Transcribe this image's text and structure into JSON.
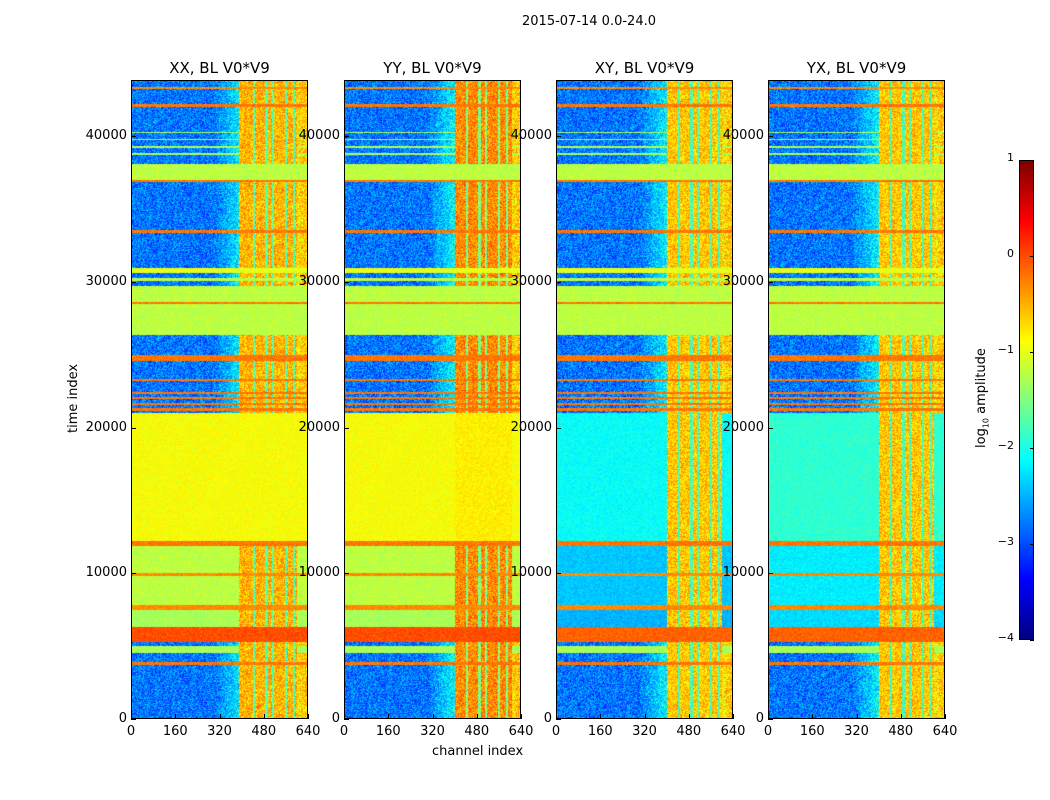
{
  "suptitle": "2015-07-14 0.0-24.0",
  "chart_data": [
    {
      "type": "heatmap",
      "title": "XX, BL V0*V9",
      "xlabel": "",
      "ylabel": "time index",
      "xlim": [
        0,
        640
      ],
      "ylim": [
        0,
        43850
      ],
      "xticks": [
        "0",
        "160",
        "320",
        "480",
        "640"
      ],
      "yticks": [
        "0",
        "10000",
        "20000",
        "30000",
        "40000"
      ],
      "base_low": -2.8,
      "hot_channels": [
        390,
        600
      ],
      "hot_value": -0.5,
      "bands": [
        [
          3700,
          3900,
          -0.2,
          -0.2
        ],
        [
          4500,
          5000,
          -1.3,
          null
        ],
        [
          5300,
          6300,
          0.0,
          0.0
        ],
        [
          6300,
          7500,
          -1.3,
          null
        ],
        [
          7500,
          7800,
          -0.3,
          -0.3
        ],
        [
          7800,
          12000,
          -1.2,
          null
        ],
        [
          9800,
          10000,
          -0.3,
          -0.3
        ],
        [
          11900,
          12200,
          -0.2,
          -0.2
        ],
        [
          12200,
          21000,
          -0.9,
          -0.9
        ],
        [
          21200,
          21350,
          -0.2,
          -0.2
        ],
        [
          21600,
          21750,
          -0.2,
          -0.2
        ],
        [
          22000,
          22150,
          -0.2,
          -0.2
        ],
        [
          22350,
          22500,
          -0.2,
          -0.2
        ],
        [
          23200,
          23400,
          -0.2,
          -0.2
        ],
        [
          24600,
          25000,
          -0.2,
          -0.2
        ],
        [
          26400,
          29800,
          -1.2,
          -1.2
        ],
        [
          28550,
          28650,
          -0.2,
          -0.2
        ],
        [
          30100,
          30300,
          -1.2,
          -1.2
        ],
        [
          30700,
          31000,
          -1.0,
          -1.0
        ],
        [
          33400,
          33600,
          -0.2,
          -0.2
        ],
        [
          36900,
          37100,
          -0.2,
          -0.2
        ],
        [
          37100,
          38200,
          -1.2,
          -1.2
        ],
        [
          38800,
          38900,
          -1.3,
          null
        ],
        [
          39300,
          39400,
          -1.3,
          null
        ],
        [
          39800,
          39900,
          -1.3,
          null
        ],
        [
          40300,
          40400,
          -1.3,
          null
        ],
        [
          42100,
          42300,
          -0.2,
          -0.2
        ],
        [
          43300,
          43450,
          -0.3,
          -0.3
        ]
      ]
    },
    {
      "type": "heatmap",
      "title": "YY, BL V0*V9",
      "xlabel": "channel index",
      "ylabel": "",
      "xlim": [
        0,
        640
      ],
      "ylim": [
        0,
        43850
      ],
      "xticks": [
        "0",
        "160",
        "320",
        "480",
        "640"
      ],
      "yticks": [
        "0",
        "10000",
        "20000",
        "30000",
        "40000"
      ],
      "base_low": -2.8,
      "hot_channels": [
        400,
        610
      ],
      "hot_value": -0.3,
      "bands": [
        [
          3700,
          3900,
          -0.2,
          -0.2
        ],
        [
          4500,
          5000,
          -1.3,
          null
        ],
        [
          5300,
          6300,
          0.0,
          0.0
        ],
        [
          6300,
          7500,
          -1.3,
          null
        ],
        [
          7500,
          7800,
          -0.3,
          -0.3
        ],
        [
          7800,
          12000,
          -1.2,
          null
        ],
        [
          9800,
          10000,
          -0.3,
          -0.3
        ],
        [
          11900,
          12200,
          -0.2,
          -0.2
        ],
        [
          12200,
          21000,
          -0.9,
          -0.8
        ],
        [
          21200,
          21350,
          -0.2,
          -0.2
        ],
        [
          21600,
          21750,
          -0.2,
          -0.2
        ],
        [
          22000,
          22150,
          -0.2,
          -0.2
        ],
        [
          22350,
          22500,
          -0.2,
          -0.2
        ],
        [
          23200,
          23400,
          -0.2,
          -0.2
        ],
        [
          24600,
          25000,
          -0.2,
          -0.2
        ],
        [
          26400,
          29800,
          -1.2,
          -1.2
        ],
        [
          28550,
          28650,
          -0.2,
          -0.2
        ],
        [
          30100,
          30300,
          -1.2,
          -1.2
        ],
        [
          30700,
          31000,
          -1.0,
          -1.0
        ],
        [
          33400,
          33600,
          -0.2,
          -0.2
        ],
        [
          36900,
          37100,
          -0.2,
          -0.2
        ],
        [
          37100,
          38200,
          -1.2,
          -1.2
        ],
        [
          38800,
          38900,
          -1.3,
          null
        ],
        [
          39300,
          39400,
          -1.3,
          null
        ],
        [
          39800,
          39900,
          -1.3,
          null
        ],
        [
          40300,
          40400,
          -1.3,
          null
        ],
        [
          42100,
          42300,
          -0.2,
          -0.2
        ],
        [
          43300,
          43450,
          -0.3,
          -0.3
        ]
      ]
    },
    {
      "type": "heatmap",
      "title": "XY, BL V0*V9",
      "xlabel": "",
      "ylabel": "",
      "xlim": [
        0,
        640
      ],
      "ylim": [
        0,
        43850
      ],
      "xticks": [
        "0",
        "160",
        "320",
        "480",
        "640"
      ],
      "yticks": [
        "0",
        "10000",
        "20000",
        "30000",
        "40000"
      ],
      "base_low": -2.8,
      "hot_channels": [
        400,
        600
      ],
      "hot_value": -0.6,
      "bands": [
        [
          3700,
          3900,
          -0.2,
          -0.2
        ],
        [
          4500,
          5000,
          -1.3,
          null
        ],
        [
          5300,
          6300,
          -0.1,
          -0.1
        ],
        [
          6300,
          7500,
          -2.5,
          null
        ],
        [
          7500,
          7800,
          -0.3,
          -0.3
        ],
        [
          7800,
          12000,
          -2.4,
          null
        ],
        [
          9800,
          10000,
          -0.3,
          -0.3
        ],
        [
          11900,
          12200,
          -0.2,
          -0.2
        ],
        [
          12200,
          21000,
          -2.1,
          null
        ],
        [
          21200,
          21350,
          -0.2,
          -0.2
        ],
        [
          21600,
          21750,
          -0.2,
          -0.2
        ],
        [
          22000,
          22150,
          -0.2,
          -0.2
        ],
        [
          22350,
          22500,
          -0.2,
          -0.2
        ],
        [
          23200,
          23400,
          -0.2,
          -0.2
        ],
        [
          24600,
          25000,
          -0.2,
          -0.2
        ],
        [
          26400,
          29800,
          -1.2,
          -1.2
        ],
        [
          28550,
          28650,
          -0.2,
          -0.2
        ],
        [
          30100,
          30300,
          -1.2,
          -1.2
        ],
        [
          30700,
          31000,
          -1.0,
          -1.0
        ],
        [
          33400,
          33600,
          -0.2,
          -0.2
        ],
        [
          36900,
          37100,
          -0.2,
          -0.2
        ],
        [
          37100,
          38200,
          -1.2,
          -1.2
        ],
        [
          38800,
          38900,
          -1.3,
          null
        ],
        [
          39300,
          39400,
          -1.3,
          null
        ],
        [
          39800,
          39900,
          -1.3,
          null
        ],
        [
          40300,
          40400,
          -1.3,
          null
        ],
        [
          42100,
          42300,
          -0.2,
          -0.2
        ],
        [
          43300,
          43450,
          -0.3,
          -0.3
        ]
      ]
    },
    {
      "type": "heatmap",
      "title": "YX, BL V0*V9",
      "xlabel": "",
      "ylabel": "",
      "xlim": [
        0,
        640
      ],
      "ylim": [
        0,
        43850
      ],
      "xticks": [
        "0",
        "160",
        "320",
        "480",
        "640"
      ],
      "yticks": [
        "0",
        "10000",
        "20000",
        "30000",
        "40000"
      ],
      "base_low": -2.8,
      "hot_channels": [
        400,
        600
      ],
      "hot_value": -0.6,
      "bands": [
        [
          3700,
          3900,
          -0.2,
          -0.2
        ],
        [
          4500,
          5000,
          -1.3,
          null
        ],
        [
          5300,
          6300,
          -0.1,
          -0.1
        ],
        [
          6300,
          7500,
          -2.3,
          null
        ],
        [
          7500,
          7800,
          -0.3,
          -0.3
        ],
        [
          7800,
          12000,
          -2.2,
          null
        ],
        [
          9800,
          10000,
          -0.3,
          -0.3
        ],
        [
          11900,
          12200,
          -0.2,
          -0.2
        ],
        [
          12200,
          21000,
          -1.9,
          null
        ],
        [
          21200,
          21350,
          -0.2,
          -0.2
        ],
        [
          21600,
          21750,
          -0.2,
          -0.2
        ],
        [
          22000,
          22150,
          -0.2,
          -0.2
        ],
        [
          22350,
          22500,
          -0.2,
          -0.2
        ],
        [
          23200,
          23400,
          -0.2,
          -0.2
        ],
        [
          24600,
          25000,
          -0.2,
          -0.2
        ],
        [
          26400,
          29800,
          -1.2,
          -1.2
        ],
        [
          28550,
          28650,
          -0.2,
          -0.2
        ],
        [
          30100,
          30300,
          -1.2,
          -1.2
        ],
        [
          30700,
          31000,
          -1.0,
          -1.0
        ],
        [
          33400,
          33600,
          -0.2,
          -0.2
        ],
        [
          36900,
          37100,
          -0.2,
          -0.2
        ],
        [
          37100,
          38200,
          -1.2,
          -1.2
        ],
        [
          38800,
          38900,
          -1.3,
          null
        ],
        [
          39300,
          39400,
          -1.3,
          null
        ],
        [
          39800,
          39900,
          -1.3,
          null
        ],
        [
          40300,
          40400,
          -1.3,
          null
        ],
        [
          42100,
          42300,
          -0.2,
          -0.2
        ],
        [
          43300,
          43450,
          -0.3,
          -0.3
        ]
      ]
    }
  ],
  "colorbar": {
    "label": "log10 amplitude",
    "label_base": "log",
    "label_sub": "10",
    "label_rest": " amplitude",
    "range": [
      -4,
      1
    ],
    "ticks": [
      "1",
      "0",
      "−1",
      "−2",
      "−3",
      "−4"
    ],
    "tick_values": [
      1,
      0,
      -1,
      -2,
      -3,
      -4
    ],
    "colormap": "jet"
  }
}
